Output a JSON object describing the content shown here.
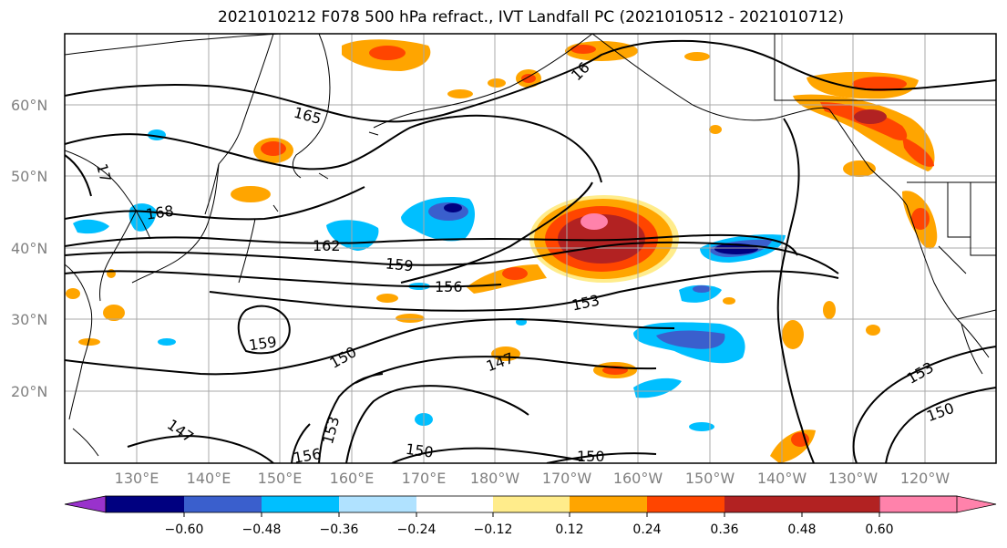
{
  "title": "2021010212 F078 500 hPa refract., IVT Landfall PC (2021010512 - 2021010712)",
  "map": {
    "lat_labels": [
      "60°N",
      "50°N",
      "40°N",
      "30°N",
      "20°N"
    ],
    "lon_labels": [
      "130°E",
      "140°E",
      "150°E",
      "160°E",
      "170°E",
      "180°W",
      "170°W",
      "160°W",
      "150°W",
      "140°W",
      "130°W",
      "120°W"
    ],
    "contour_labels": [
      "165",
      "168",
      "162",
      "159",
      "156",
      "153",
      "159",
      "150",
      "147",
      "153",
      "150",
      "147",
      "153",
      "156",
      "150",
      "150",
      "17",
      "16"
    ]
  },
  "colorbar": {
    "colors": [
      "#9932CC",
      "#000080",
      "#3A5FCD",
      "#00BFFF",
      "#B0E2FF",
      "#FFFFFF",
      "#FFEC8B",
      "#FFA500",
      "#FF4500",
      "#B22222",
      "#FF82AB"
    ],
    "tick_labels": [
      "−0.60",
      "−0.48",
      "−0.36",
      "−0.24",
      "−0.12",
      "0.12",
      "0.24",
      "0.36",
      "0.48",
      "0.60"
    ]
  }
}
